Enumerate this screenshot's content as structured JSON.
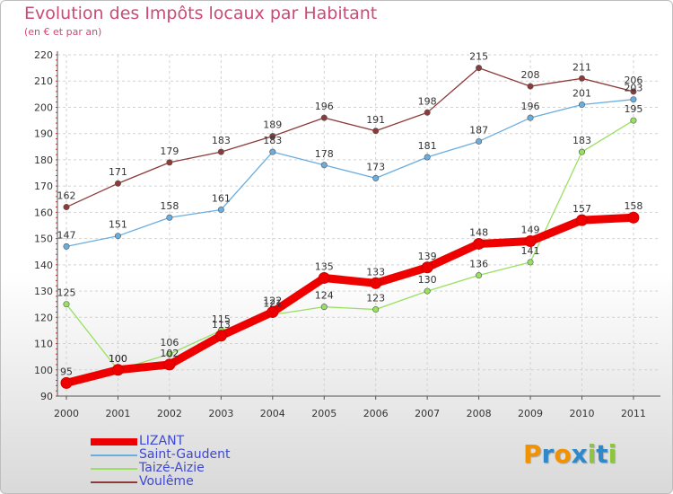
{
  "header": {
    "title": "Evolution des Impôts locaux par Habitant",
    "subtitle": "(en € et par an)"
  },
  "logo": {
    "letters": [
      "P",
      "r",
      "o",
      "x",
      "i",
      "t",
      "i"
    ],
    "colors": [
      "#f39200",
      "#2e88c9",
      "#f39200",
      "#2e88c9",
      "#8cc63f",
      "#2e88c9",
      "#8cc63f"
    ]
  },
  "chart_data": {
    "type": "line",
    "title": "Evolution des Impôts locaux par Habitant",
    "subtitle": "(en € et par an)",
    "xlabel": "",
    "ylabel": "",
    "x": [
      "2000",
      "2001",
      "2002",
      "2003",
      "2004",
      "2005",
      "2006",
      "2007",
      "2008",
      "2009",
      "2010",
      "2011"
    ],
    "ylim": [
      90,
      220
    ],
    "yticks": [
      90,
      100,
      110,
      120,
      130,
      140,
      150,
      160,
      170,
      180,
      190,
      200,
      210,
      220
    ],
    "grid": true,
    "legend_position": "bottom-left",
    "series": [
      {
        "name": "LIZANT",
        "color": "#ee0000",
        "values": [
          95,
          100,
          102,
          113,
          122,
          135,
          133,
          139,
          148,
          149,
          157,
          158
        ],
        "labels": [
          "95",
          "100",
          "102",
          "113",
          "122",
          "135",
          "133",
          "139",
          "148",
          "149",
          "157",
          "158"
        ]
      },
      {
        "name": "Saint-Gaudent",
        "color": "#6aaee0",
        "values": [
          147,
          151,
          158,
          161,
          183,
          178,
          173,
          181,
          187,
          196,
          201,
          203
        ],
        "labels": [
          "147",
          "151",
          "158",
          "161",
          "183",
          "178",
          "173",
          "181",
          "187",
          "196",
          "201",
          "203"
        ]
      },
      {
        "name": "Taizé-Aizie",
        "color": "#99e060",
        "values": [
          125,
          100,
          106,
          115,
          121,
          124,
          123,
          130,
          136,
          141,
          183,
          195
        ],
        "labels": [
          "125",
          "100",
          "106",
          "115",
          "121",
          "124",
          "123",
          "130",
          "136",
          "141",
          "183",
          "195"
        ]
      },
      {
        "name": "Voulême",
        "color": "#8c3a3a",
        "values": [
          162,
          171,
          179,
          183,
          189,
          196,
          191,
          198,
          215,
          208,
          211,
          206
        ],
        "labels": [
          "162",
          "171",
          "179",
          "183",
          "189",
          "196",
          "191",
          "198",
          "215",
          "208",
          "211",
          "206"
        ]
      }
    ]
  }
}
